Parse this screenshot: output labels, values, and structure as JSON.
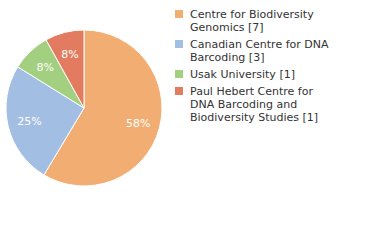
{
  "chart_data": {
    "type": "pie",
    "categories": [
      "Centre for Biodiversity Genomics [7]",
      "Canadian Centre for DNA Barcoding [3]",
      "Usak University [1]",
      "Paul Hebert Centre for DNA Barcoding and Biodiversity Studies [1]"
    ],
    "values": [
      58,
      25,
      8,
      8
    ],
    "value_labels": [
      "58%",
      "25%",
      "8%",
      "8%"
    ],
    "colors": [
      "#f2ae72",
      "#a3bee3",
      "#a3cf80",
      "#e27b60"
    ],
    "data_labels": true,
    "legend": "right"
  }
}
